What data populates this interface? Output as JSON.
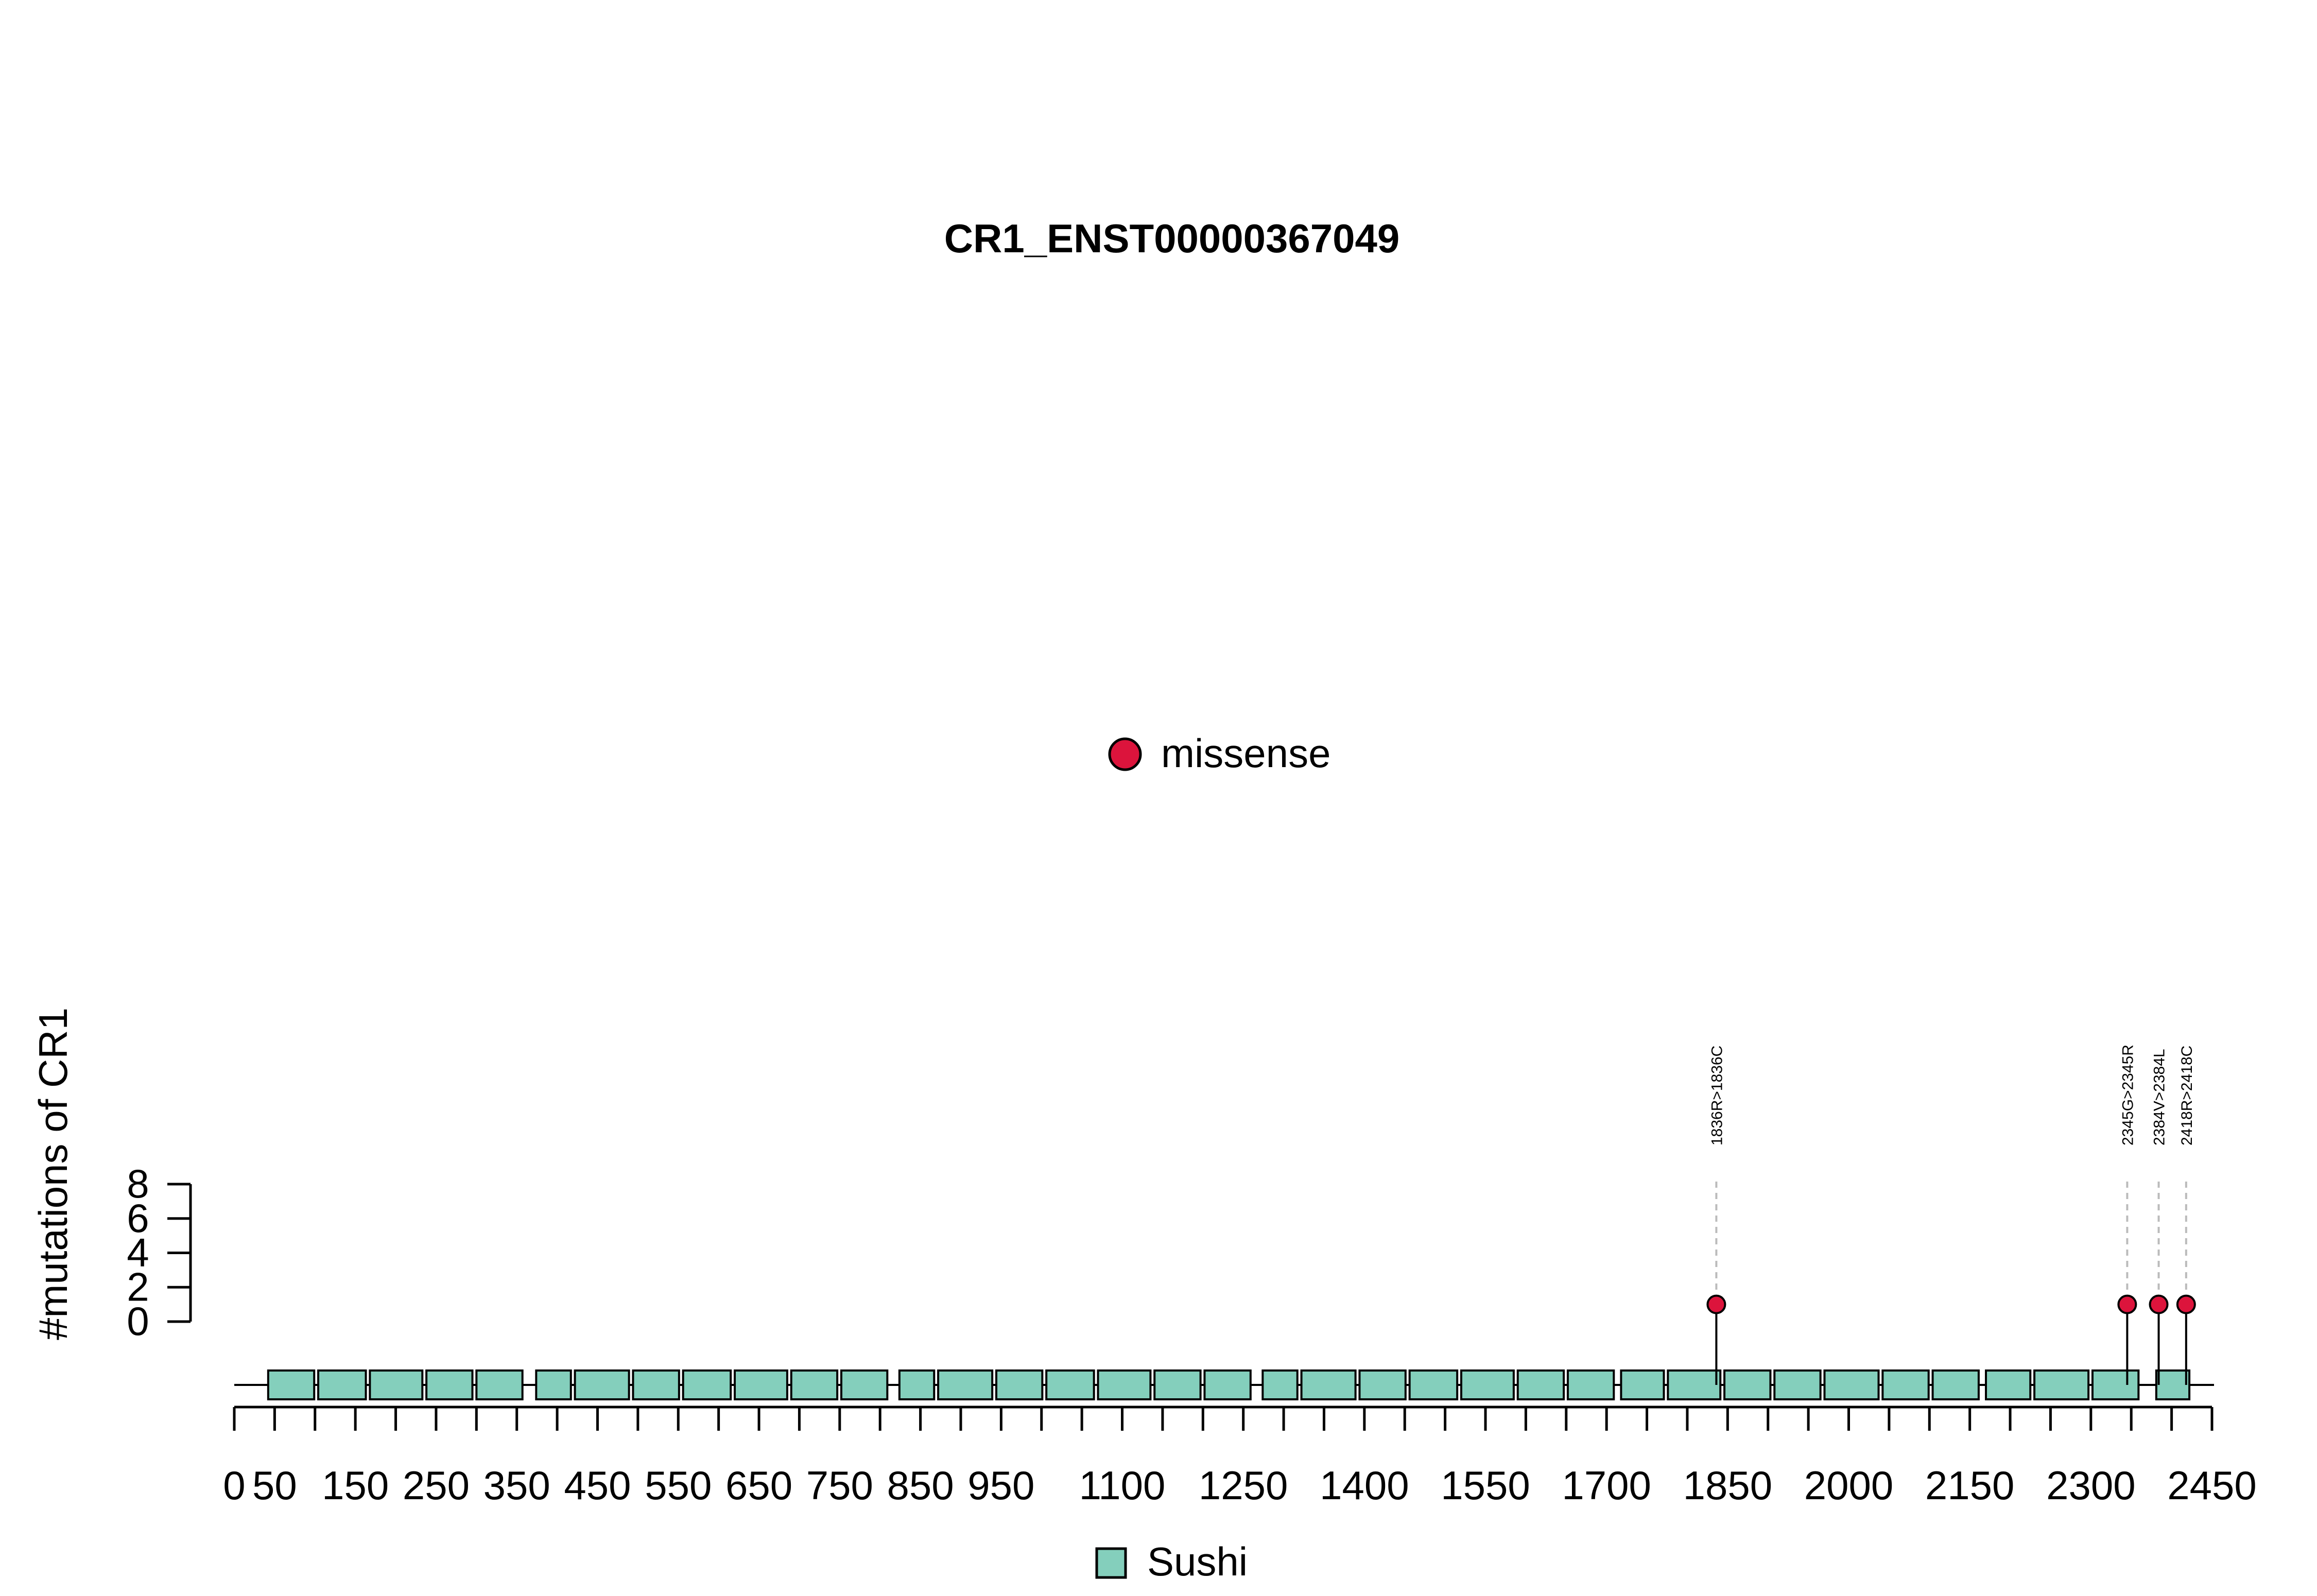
{
  "chart_data": {
    "type": "lollipop",
    "title": "CR1_ENST00000367049",
    "ylabel": "#mutations of CR1",
    "xlabel": "",
    "protein_length": 2450,
    "xlim": [
      0,
      2450
    ],
    "ylim": [
      0,
      8
    ],
    "y_ticks": [
      "0",
      "2",
      "4",
      "6",
      "8"
    ],
    "x_ticks": [
      {
        "value": 0,
        "label": "0"
      },
      {
        "value": 50,
        "label": "50"
      },
      {
        "value": 100,
        "label": ""
      },
      {
        "value": 150,
        "label": "150"
      },
      {
        "value": 200,
        "label": ""
      },
      {
        "value": 250,
        "label": "250"
      },
      {
        "value": 300,
        "label": ""
      },
      {
        "value": 350,
        "label": "350"
      },
      {
        "value": 400,
        "label": ""
      },
      {
        "value": 450,
        "label": "450"
      },
      {
        "value": 500,
        "label": ""
      },
      {
        "value": 550,
        "label": "550"
      },
      {
        "value": 600,
        "label": ""
      },
      {
        "value": 650,
        "label": "650"
      },
      {
        "value": 700,
        "label": ""
      },
      {
        "value": 750,
        "label": "750"
      },
      {
        "value": 800,
        "label": ""
      },
      {
        "value": 850,
        "label": "850"
      },
      {
        "value": 900,
        "label": ""
      },
      {
        "value": 950,
        "label": "950"
      },
      {
        "value": 1000,
        "label": ""
      },
      {
        "value": 1050,
        "label": ""
      },
      {
        "value": 1100,
        "label": "1100"
      },
      {
        "value": 1150,
        "label": ""
      },
      {
        "value": 1200,
        "label": ""
      },
      {
        "value": 1250,
        "label": "1250"
      },
      {
        "value": 1300,
        "label": ""
      },
      {
        "value": 1350,
        "label": ""
      },
      {
        "value": 1400,
        "label": "1400"
      },
      {
        "value": 1450,
        "label": ""
      },
      {
        "value": 1500,
        "label": ""
      },
      {
        "value": 1550,
        "label": "1550"
      },
      {
        "value": 1600,
        "label": ""
      },
      {
        "value": 1650,
        "label": ""
      },
      {
        "value": 1700,
        "label": "1700"
      },
      {
        "value": 1750,
        "label": ""
      },
      {
        "value": 1800,
        "label": ""
      },
      {
        "value": 1850,
        "label": "1850"
      },
      {
        "value": 1900,
        "label": ""
      },
      {
        "value": 1950,
        "label": ""
      },
      {
        "value": 2000,
        "label": "2000"
      },
      {
        "value": 2050,
        "label": ""
      },
      {
        "value": 2100,
        "label": ""
      },
      {
        "value": 2150,
        "label": "2150"
      },
      {
        "value": 2200,
        "label": ""
      },
      {
        "value": 2250,
        "label": ""
      },
      {
        "value": 2300,
        "label": "2300"
      },
      {
        "value": 2350,
        "label": ""
      },
      {
        "value": 2400,
        "label": ""
      },
      {
        "value": 2450,
        "label": "2450"
      }
    ],
    "domains": [
      {
        "name": "Sushi",
        "start": 42,
        "end": 99
      },
      {
        "name": "Sushi",
        "start": 104,
        "end": 163
      },
      {
        "name": "Sushi",
        "start": 168,
        "end": 233
      },
      {
        "name": "Sushi",
        "start": 238,
        "end": 295
      },
      {
        "name": "Sushi",
        "start": 300,
        "end": 357
      },
      {
        "name": "Sushi",
        "start": 374,
        "end": 417
      },
      {
        "name": "Sushi",
        "start": 422,
        "end": 489
      },
      {
        "name": "Sushi",
        "start": 494,
        "end": 551
      },
      {
        "name": "Sushi",
        "start": 556,
        "end": 615
      },
      {
        "name": "Sushi",
        "start": 620,
        "end": 685
      },
      {
        "name": "Sushi",
        "start": 690,
        "end": 747
      },
      {
        "name": "Sushi",
        "start": 752,
        "end": 809
      },
      {
        "name": "Sushi",
        "start": 824,
        "end": 867
      },
      {
        "name": "Sushi",
        "start": 872,
        "end": 939
      },
      {
        "name": "Sushi",
        "start": 944,
        "end": 1001
      },
      {
        "name": "Sushi",
        "start": 1006,
        "end": 1065
      },
      {
        "name": "Sushi",
        "start": 1070,
        "end": 1135
      },
      {
        "name": "Sushi",
        "start": 1140,
        "end": 1197
      },
      {
        "name": "Sushi",
        "start": 1202,
        "end": 1259
      },
      {
        "name": "Sushi",
        "start": 1274,
        "end": 1317
      },
      {
        "name": "Sushi",
        "start": 1322,
        "end": 1389
      },
      {
        "name": "Sushi",
        "start": 1394,
        "end": 1451
      },
      {
        "name": "Sushi",
        "start": 1456,
        "end": 1515
      },
      {
        "name": "Sushi",
        "start": 1520,
        "end": 1585
      },
      {
        "name": "Sushi",
        "start": 1590,
        "end": 1647
      },
      {
        "name": "Sushi",
        "start": 1652,
        "end": 1709
      },
      {
        "name": "Sushi",
        "start": 1718,
        "end": 1771
      },
      {
        "name": "Sushi",
        "start": 1776,
        "end": 1841
      },
      {
        "name": "Sushi",
        "start": 1846,
        "end": 1903
      },
      {
        "name": "Sushi",
        "start": 1908,
        "end": 1965
      },
      {
        "name": "Sushi",
        "start": 1970,
        "end": 2037
      },
      {
        "name": "Sushi",
        "start": 2042,
        "end": 2099
      },
      {
        "name": "Sushi",
        "start": 2104,
        "end": 2161
      },
      {
        "name": "Sushi",
        "start": 2170,
        "end": 2225
      },
      {
        "name": "Sushi",
        "start": 2230,
        "end": 2297
      },
      {
        "name": "Sushi",
        "start": 2302,
        "end": 2359
      },
      {
        "name": "Sushi",
        "start": 2381,
        "end": 2422
      }
    ],
    "mutations": [
      {
        "position": 1836,
        "count": 1,
        "label": "1836R>1836C",
        "type": "missense"
      },
      {
        "position": 2345,
        "count": 1,
        "label": "2345G>2345R",
        "type": "missense"
      },
      {
        "position": 2384,
        "count": 1,
        "label": "2384V>2384L",
        "type": "missense"
      },
      {
        "position": 2418,
        "count": 1,
        "label": "2418R>2418C",
        "type": "missense"
      }
    ],
    "legend_mutations": [
      {
        "label": "missense",
        "color": "#DC143C"
      }
    ],
    "legend_domains": [
      {
        "label": "Sushi",
        "color": "#84CFBC"
      }
    ],
    "legend_placement": "top-center",
    "colors": {
      "missense": "#DC143C",
      "Sushi": "#84CFBC",
      "connector": "#BBBBBB"
    },
    "grid": false
  }
}
